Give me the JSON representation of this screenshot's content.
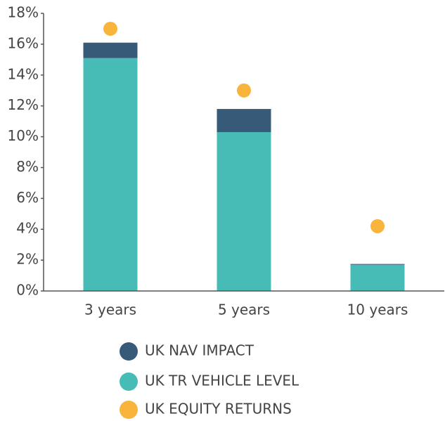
{
  "chart_data": {
    "type": "bar",
    "categories": [
      "3 years",
      "5 years",
      "10 years"
    ],
    "series": [
      {
        "name": "UK NAV IMPACT",
        "color": "#375a78",
        "values": [
          1.0,
          1.5,
          0.05
        ]
      },
      {
        "name": "UK TR VEHICLE LEVEL",
        "color": "#47bcb6",
        "values": [
          15.1,
          10.3,
          1.7
        ]
      },
      {
        "name": "UK EQUITY RETURNS",
        "color": "#f9b43c",
        "type": "scatter",
        "values": [
          17.0,
          13.0,
          4.2
        ]
      }
    ],
    "stack_order": [
      1,
      0
    ],
    "ylim": [
      0,
      18
    ],
    "yticks": [
      {
        "value": 0,
        "label": "0%"
      },
      {
        "value": 2,
        "label": "2%"
      },
      {
        "value": 4,
        "label": "4%"
      },
      {
        "value": 6,
        "label": "6%"
      },
      {
        "value": 8,
        "label": "8%"
      },
      {
        "value": 10,
        "label": "10%"
      },
      {
        "value": 12,
        "label": "12%"
      },
      {
        "value": 14,
        "label": "14%"
      },
      {
        "value": 16,
        "label": "16%"
      },
      {
        "value": 18,
        "label": "18%"
      }
    ],
    "grid": false
  }
}
